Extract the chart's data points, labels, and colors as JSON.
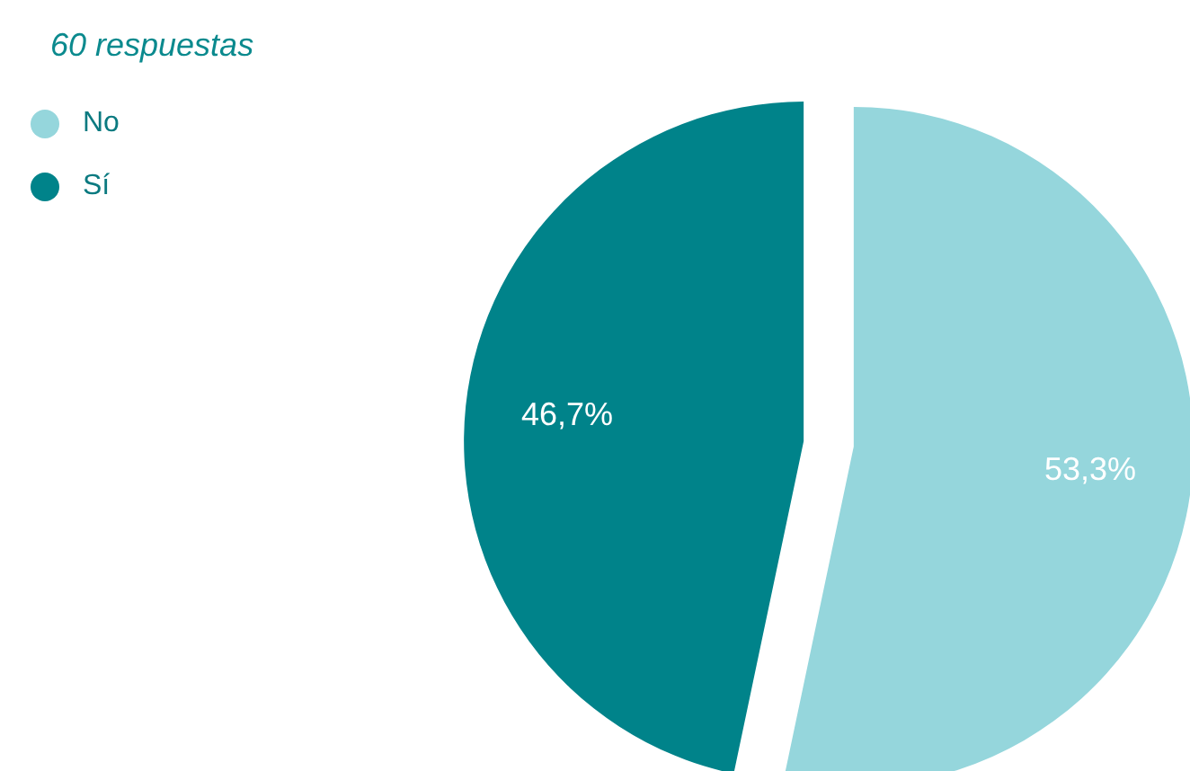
{
  "chart_data": {
    "type": "pie",
    "subtitle": "60 respuestas",
    "categories": [
      "No",
      "Sí"
    ],
    "values": [
      53.3,
      46.7
    ],
    "value_labels": [
      "53,3%",
      "46,7%"
    ],
    "colors": [
      "#95d6dc",
      "#00838a"
    ],
    "legend": "top left"
  }
}
